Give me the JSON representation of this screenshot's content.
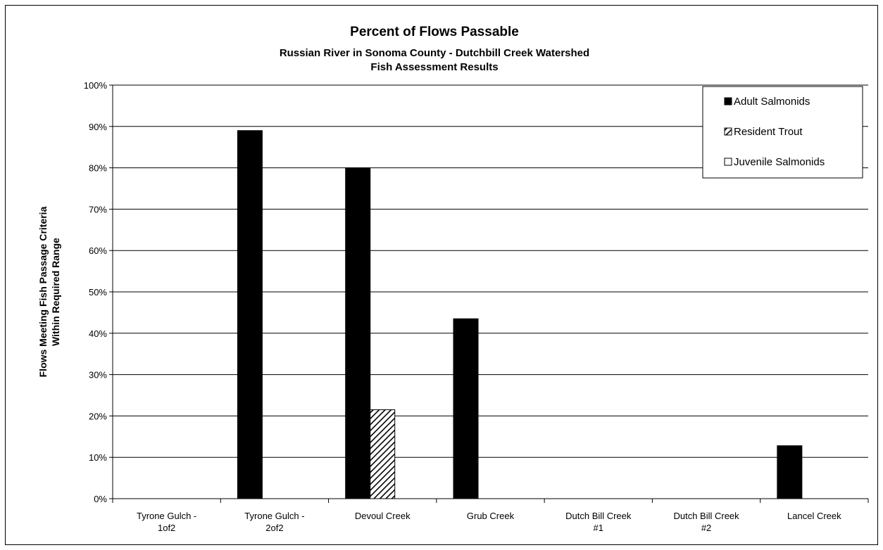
{
  "chart_data": {
    "type": "bar",
    "title": "Percent of Flows Passable",
    "subtitle_lines": [
      "Russian River in Sonoma County - Dutchbill Creek Watershed",
      "Fish Assessment Results"
    ],
    "ylabel_lines": [
      "Flows Meeting Fish Passage Criteria",
      "Within Required Range"
    ],
    "xlabel": "",
    "categories": [
      [
        "Tyrone Gulch -",
        "1of2"
      ],
      [
        "Tyrone Gulch -",
        "2of2"
      ],
      [
        "Devoul Creek"
      ],
      [
        "Grub Creek"
      ],
      [
        "Dutch Bill Creek",
        "#1"
      ],
      [
        "Dutch Bill Creek",
        "#2"
      ],
      [
        "Lancel Creek"
      ]
    ],
    "series": [
      {
        "name": "Adult Salmonids",
        "pattern": "solid",
        "color": "#000000",
        "values": [
          0,
          89,
          80,
          43.5,
          0,
          0,
          12.8
        ]
      },
      {
        "name": "Resident Trout",
        "pattern": "diagonal-hatch",
        "color": "#000000",
        "values": [
          0,
          0,
          21.5,
          0,
          0,
          0,
          0
        ]
      },
      {
        "name": "Juvenile Salmonids",
        "pattern": "hollow",
        "color": "#ffffff",
        "values": [
          0,
          0,
          0,
          0,
          0,
          0,
          0
        ]
      }
    ],
    "ylim": [
      0,
      100
    ],
    "yticks": [
      0,
      10,
      20,
      30,
      40,
      50,
      60,
      70,
      80,
      90,
      100
    ],
    "ytick_format": "percent",
    "grid": "horizontal",
    "legend_position": "top-right"
  }
}
